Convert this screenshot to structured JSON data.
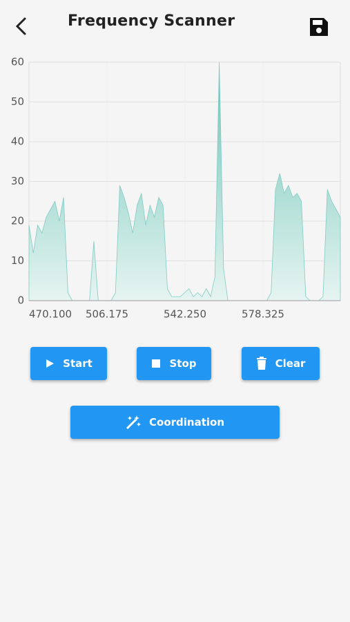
{
  "header": {
    "title": "Frequency Scanner"
  },
  "buttons": [
    {
      "label": "Start"
    },
    {
      "label": "Stop"
    },
    {
      "label": "Clear"
    },
    {
      "label": "Coordination"
    }
  ],
  "chart_data": {
    "type": "area",
    "series": [
      {
        "color": "#80cbc4",
        "x": [
          470.1,
          472.1,
          474.1,
          476.1,
          478.1,
          480.1,
          482.1,
          484.1,
          486.1,
          488.1,
          490.1,
          492.1,
          494.1,
          496.1,
          498.1,
          500.1,
          502.1,
          504.1,
          506.1,
          508.1,
          510.1,
          512.1,
          514.1,
          516.1,
          518.1,
          520.1,
          522.1,
          524.1,
          526.1,
          528.1,
          530.1,
          532.1,
          534.1,
          536.1,
          538.1,
          540.1,
          542.1,
          544.1,
          546.1,
          548.1,
          550.1,
          552.1,
          554.1,
          556.1,
          558.1,
          560.1,
          562.1,
          564.1,
          566.1,
          568.1,
          570.1,
          572.1,
          574.1,
          576.1,
          578.1,
          580.1,
          582.1,
          584.1,
          586.1,
          588.1,
          590.1,
          592.1,
          594.1,
          596.1,
          598.1,
          600.1,
          602.1,
          604.1,
          606.1,
          608.1,
          610.1,
          612.1,
          614.1
        ],
        "values": [
          19,
          12,
          19,
          17,
          21,
          23,
          25,
          20,
          26,
          2,
          0,
          0,
          0,
          0,
          0,
          15,
          0,
          0,
          0,
          0,
          2,
          29,
          26,
          22,
          17,
          24,
          27,
          19,
          24,
          21,
          26,
          24,
          3,
          1,
          1,
          1,
          2,
          3,
          1,
          2,
          1,
          3,
          1,
          6,
          60,
          8,
          0,
          0,
          0,
          0,
          0,
          0,
          0,
          0,
          0,
          0,
          2,
          28,
          32,
          27,
          29,
          26,
          27,
          25,
          1,
          0,
          0,
          0,
          1,
          28,
          25,
          23,
          21
        ]
      }
    ],
    "xlim": [
      470.1,
      614.1
    ],
    "xticks": [
      {
        "value": 470.1,
        "label": "470.100"
      },
      {
        "value": 506.175,
        "label": "506.175"
      },
      {
        "value": 542.25,
        "label": "542.250"
      },
      {
        "value": 578.325,
        "label": "578.325"
      }
    ],
    "ylim": [
      0,
      60
    ],
    "yticks": [
      0,
      10,
      20,
      30,
      40,
      50,
      60
    ],
    "grid": true
  }
}
